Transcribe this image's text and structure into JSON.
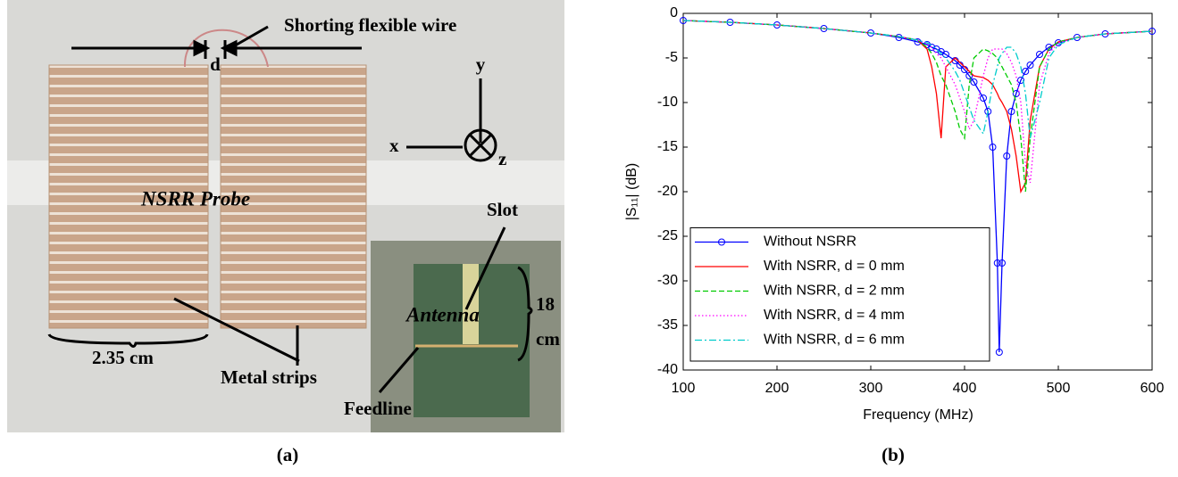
{
  "photo": {
    "labels": [
      "Shorting flexible wire",
      "d",
      "y",
      "x",
      "z",
      "NSRR Probe",
      "Slot",
      "Antenna",
      "18",
      "cm",
      "2.35 cm",
      "Metal strips",
      "Feedline"
    ],
    "caption": "(a)"
  },
  "chart_data": {
    "type": "line",
    "caption": "(b)",
    "xlabel": "Frequency (MHz)",
    "ylabel": "|S₁₁| (dB)",
    "x": [
      100,
      150,
      200,
      250,
      300,
      330,
      350,
      360,
      365,
      370,
      375,
      380,
      390,
      395,
      400,
      405,
      410,
      420,
      425,
      430,
      435,
      437,
      440,
      445,
      450,
      455,
      460,
      465,
      470,
      480,
      490,
      500,
      520,
      550,
      600
    ],
    "xlim": [
      100,
      600
    ],
    "xticks": [
      100,
      200,
      300,
      400,
      500,
      600
    ],
    "ylim": [
      -40,
      0
    ],
    "yticks": [
      -40,
      -35,
      -30,
      -25,
      -20,
      -15,
      -10,
      -5,
      0
    ],
    "legend": "lower left",
    "series": [
      {
        "name": "Without NSRR",
        "color": "#0000ff",
        "linestyle": "solid",
        "marker": "o",
        "values": [
          -0.8,
          -1.0,
          -1.3,
          -1.7,
          -2.2,
          -2.7,
          -3.2,
          -3.5,
          -3.8,
          -4.0,
          -4.3,
          -4.6,
          -5.3,
          -5.8,
          -6.3,
          -7,
          -7.7,
          -9.5,
          -11,
          -15,
          -28,
          -38,
          -28,
          -16,
          -11,
          -9,
          -7.5,
          -6.5,
          -5.8,
          -4.6,
          -3.8,
          -3.3,
          -2.7,
          -2.3,
          -2.0
        ]
      },
      {
        "name": "With NSRR, d = 0 mm",
        "color": "#ff0000",
        "linestyle": "solid",
        "values": [
          -0.8,
          -1.0,
          -1.3,
          -1.7,
          -2.2,
          -2.6,
          -3.0,
          -4.0,
          -6,
          -9,
          -14,
          -6,
          -5,
          -5.5,
          -6,
          -6.5,
          -7,
          -7.2,
          -7.5,
          -8,
          -9,
          -9.5,
          -10,
          -11,
          -13,
          -16,
          -20,
          -19,
          -12,
          -6,
          -4,
          -3.2,
          -2.7,
          -2.3,
          -2.0
        ]
      },
      {
        "name": "With NSRR, d = 2 mm",
        "color": "#00cc00",
        "linestyle": "dashed",
        "values": [
          -0.8,
          -1.0,
          -1.3,
          -1.7,
          -2.2,
          -2.6,
          -3.0,
          -3.8,
          -4.5,
          -5.5,
          -7,
          -8,
          -11,
          -13,
          -14,
          -8,
          -5,
          -4,
          -4.2,
          -4.5,
          -5,
          -5.5,
          -6,
          -7,
          -8,
          -10,
          -14,
          -20,
          -14,
          -6,
          -4,
          -3.2,
          -2.7,
          -2.3,
          -2.0
        ]
      },
      {
        "name": "With NSRR, d = 4 mm",
        "color": "#ff00ff",
        "linestyle": "dotted",
        "values": [
          -0.8,
          -1.0,
          -1.3,
          -1.7,
          -2.2,
          -2.6,
          -3.0,
          -3.4,
          -3.8,
          -4.5,
          -5,
          -6,
          -8,
          -9.5,
          -11,
          -13,
          -12,
          -7,
          -5,
          -4,
          -4,
          -4,
          -4,
          -4.5,
          -5.5,
          -7,
          -10,
          -17,
          -19,
          -8,
          -4.5,
          -3.3,
          -2.7,
          -2.3,
          -2.0
        ]
      },
      {
        "name": "With NSRR, d = 6 mm",
        "color": "#00cccc",
        "linestyle": "dashdot",
        "values": [
          -0.8,
          -1.0,
          -1.3,
          -1.7,
          -2.2,
          -2.6,
          -3.0,
          -3.3,
          -3.6,
          -4.0,
          -4.5,
          -5,
          -6.5,
          -7.5,
          -9,
          -10.5,
          -12,
          -13.5,
          -11,
          -8,
          -6,
          -5,
          -4.5,
          -3.8,
          -3.8,
          -4.5,
          -6,
          -9,
          -14,
          -10,
          -5,
          -3.5,
          -2.7,
          -2.3,
          -2.0
        ]
      }
    ]
  }
}
